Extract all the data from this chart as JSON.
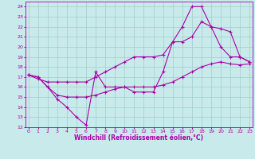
{
  "background_color": "#c8eaea",
  "grid_color": "#a0cccc",
  "line_color": "#aa00aa",
  "xlim": [
    -0.3,
    23.3
  ],
  "ylim": [
    12,
    24.5
  ],
  "yticks": [
    12,
    13,
    14,
    15,
    16,
    17,
    18,
    19,
    20,
    21,
    22,
    23,
    24
  ],
  "xticks": [
    0,
    1,
    2,
    3,
    4,
    5,
    6,
    7,
    8,
    9,
    10,
    11,
    12,
    13,
    14,
    15,
    16,
    17,
    18,
    19,
    20,
    21,
    22,
    23
  ],
  "xlabel": "Windchill (Refroidissement éolien,°C)",
  "line1_x": [
    0,
    1,
    2,
    3,
    4,
    5,
    6,
    7,
    8,
    9,
    10,
    11,
    12,
    13,
    14,
    15,
    16,
    17,
    18,
    19,
    20,
    21,
    22,
    23
  ],
  "line1_y": [
    17.2,
    17.0,
    16.0,
    14.8,
    14.0,
    13.0,
    12.2,
    17.5,
    16.0,
    16.0,
    16.0,
    15.5,
    15.5,
    15.5,
    17.5,
    20.5,
    22.0,
    24.0,
    24.0,
    22.0,
    20.0,
    19.0,
    19.0,
    18.5
  ],
  "line2_x": [
    0,
    1,
    2,
    3,
    4,
    5,
    6,
    7,
    8,
    9,
    10,
    11,
    12,
    13,
    14,
    15,
    16,
    17,
    18,
    19,
    20,
    21,
    22,
    23
  ],
  "line2_y": [
    17.2,
    16.8,
    16.5,
    16.5,
    16.5,
    16.5,
    16.5,
    17.0,
    17.5,
    18.0,
    18.5,
    19.0,
    19.0,
    19.0,
    19.2,
    20.5,
    20.5,
    21.0,
    22.5,
    22.0,
    21.8,
    21.5,
    19.0,
    18.5
  ],
  "line3_x": [
    0,
    1,
    2,
    3,
    4,
    5,
    6,
    7,
    8,
    9,
    10,
    11,
    12,
    13,
    14,
    15,
    16,
    17,
    18,
    19,
    20,
    21,
    22,
    23
  ],
  "line3_y": [
    17.2,
    17.0,
    16.0,
    15.2,
    15.0,
    15.0,
    15.0,
    15.2,
    15.5,
    15.8,
    16.0,
    16.0,
    16.0,
    16.0,
    16.2,
    16.5,
    17.0,
    17.5,
    18.0,
    18.3,
    18.5,
    18.3,
    18.2,
    18.3
  ]
}
